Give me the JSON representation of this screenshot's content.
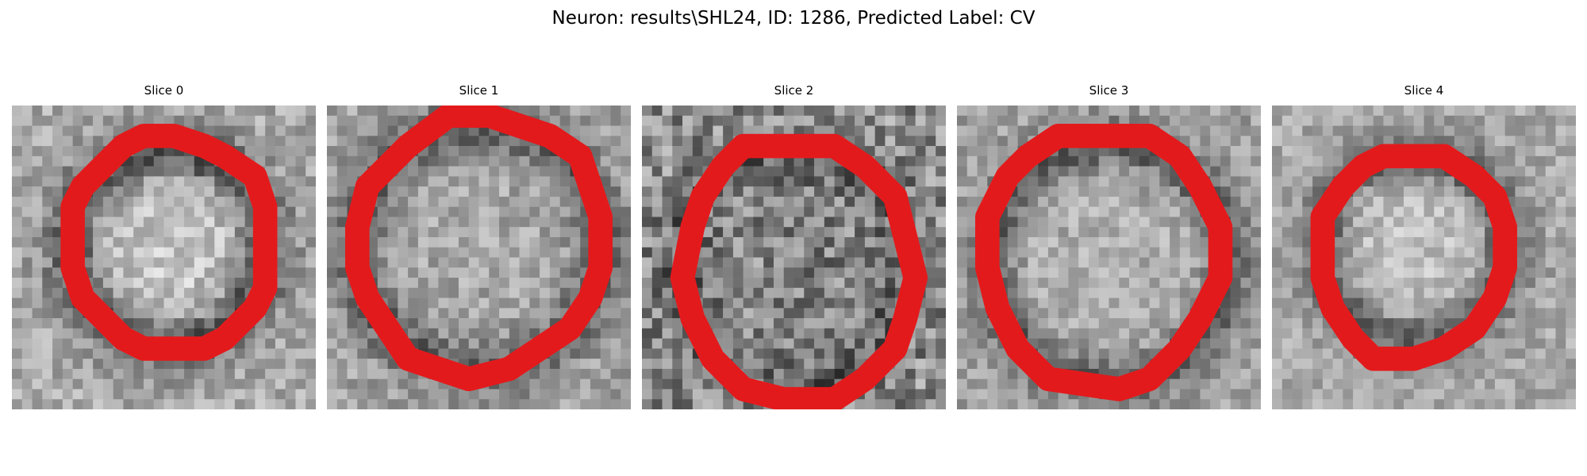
{
  "figure": {
    "title": "Neuron: results\\SHL24, ID: 1286, Predicted Label: CV",
    "contour_color": "#e31a1c",
    "colormap": "grayscale"
  },
  "panels": [
    {
      "title": "Slice 0",
      "image_description": "grayscale microscopy patch with ring-shaped neuron and red outline"
    },
    {
      "title": "Slice 1",
      "image_description": "grayscale microscopy patch with ring-shaped neuron and red outline"
    },
    {
      "title": "Slice 2",
      "image_description": "grayscale microscopy patch with noisy neuron region and red outline"
    },
    {
      "title": "Slice 3",
      "image_description": "grayscale microscopy patch with ring-shaped neuron and red outline"
    },
    {
      "title": "Slice 4",
      "image_description": "grayscale microscopy patch with ring-shaped neuron and red outline"
    }
  ]
}
